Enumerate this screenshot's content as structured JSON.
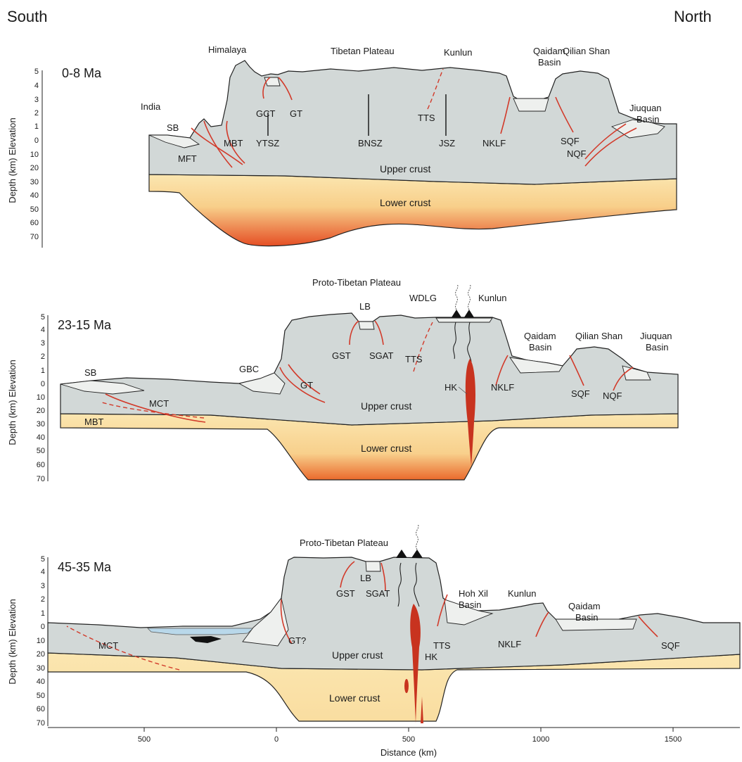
{
  "corners": {
    "left": "South",
    "right": "North"
  },
  "y_axis_label": "Depth (km) Elevation",
  "elevation_ticks": [
    "5",
    "4",
    "3",
    "2",
    "1",
    "0"
  ],
  "depth_ticks": [
    "10",
    "20",
    "30",
    "40",
    "50",
    "60",
    "70"
  ],
  "x_axis": {
    "label": "Distance (km)",
    "ticks": [
      "500",
      "0",
      "500",
      "1000",
      "1500"
    ]
  },
  "panels": [
    {
      "age": "0-8 Ma",
      "upper_crust": "Upper crust",
      "lower_crust": "Lower crust",
      "regions": [
        "Himalaya",
        "Tibetan Plateau",
        "Kunlun",
        "Qaidam Basin",
        "Qilian Shan",
        "India",
        "Jiuquan Basin"
      ],
      "structures": [
        "SB",
        "MFT",
        "MBT",
        "YTSZ",
        "GCT",
        "GT",
        "BNSZ",
        "TTS",
        "JSZ",
        "NKLF",
        "SQF",
        "NQF"
      ]
    },
    {
      "age": "23-15 Ma",
      "upper_crust": "Upper crust",
      "lower_crust": "Lower crust",
      "regions": [
        "Proto-Tibetan Plateau",
        "LB",
        "WDLG",
        "Kunlun",
        "Qaidam Basin",
        "Qilian Shan",
        "Jiuquan Basin"
      ],
      "structures": [
        "SB",
        "MCT",
        "MBT",
        "GBC",
        "GT",
        "GST",
        "SGAT",
        "TTS",
        "HK",
        "NKLF",
        "SQF",
        "NQF"
      ]
    },
    {
      "age": "45-35 Ma",
      "upper_crust": "Upper  crust",
      "lower_crust": "Lower crust",
      "regions": [
        "Proto-Tibetan Plateau",
        "LB",
        "Hoh Xil Basin",
        "Kunlun",
        "Qaidam Basin"
      ],
      "structures": [
        "MCT",
        "GT?",
        "GST",
        "SGAT",
        "TTS",
        "HK",
        "NKLF",
        "SQF"
      ]
    }
  ],
  "colors": {
    "upper_crust": "#d2d8d7",
    "lower_crust_top": "#fbe3a8",
    "lower_crust_deep": "#e8522a",
    "fault": "#d23a2a",
    "magma": "#c8331f",
    "lake": "#b9d8ea"
  }
}
